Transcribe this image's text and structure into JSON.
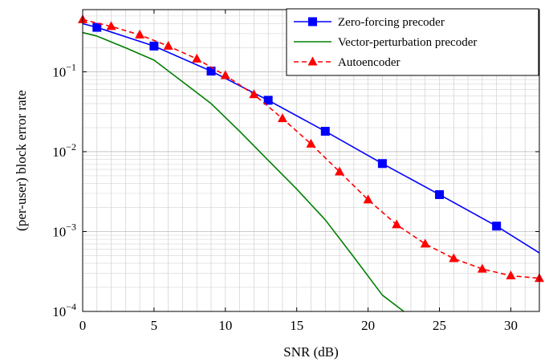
{
  "chart_data": {
    "type": "line",
    "xlabel": "SNR (dB)",
    "ylabel": "(per-user) block error rate",
    "xlim": [
      0,
      32
    ],
    "ylim": [
      0.0001,
      0.6
    ],
    "yscale": "log",
    "grid": true,
    "legend_position": "top-right",
    "x_ticks": [
      0,
      5,
      10,
      15,
      20,
      25,
      30
    ],
    "y_ticks": [
      {
        "value": 0.0001,
        "base": "10",
        "exp": "−4"
      },
      {
        "value": 0.001,
        "base": "10",
        "exp": "−3"
      },
      {
        "value": 0.01,
        "base": "10",
        "exp": "−2"
      },
      {
        "value": 0.1,
        "base": "10",
        "exp": "−1"
      }
    ],
    "series": [
      {
        "name": "Zero-forcing precoder",
        "color": "#0000ff",
        "dash": "",
        "marker": "square",
        "marker_x": [
          1,
          5,
          9,
          13,
          17,
          21,
          25,
          29
        ],
        "x": [
          0,
          1,
          5,
          9,
          13,
          17,
          21,
          25,
          29,
          32
        ],
        "y": [
          0.4,
          0.36,
          0.21,
          0.102,
          0.044,
          0.018,
          0.0071,
          0.0029,
          0.00117,
          0.00054
        ]
      },
      {
        "name": "Vector-perturbation precoder",
        "color": "#008000",
        "dash": "",
        "marker": "none",
        "marker_x": [],
        "x": [
          0,
          1,
          3,
          5,
          7,
          9,
          11,
          13,
          15,
          17,
          19,
          21,
          22.5
        ],
        "y": [
          0.31,
          0.28,
          0.2,
          0.14,
          0.075,
          0.04,
          0.018,
          0.0078,
          0.0034,
          0.0014,
          0.00048,
          0.00016,
          0.0001
        ]
      },
      {
        "name": "Autoencoder",
        "color": "#ff0000",
        "dash": "6,4",
        "marker": "triangle",
        "marker_x": [
          0,
          2,
          4,
          6,
          8,
          10,
          12,
          14,
          16,
          18,
          20,
          22,
          24,
          26,
          28,
          30,
          32
        ],
        "x": [
          0,
          2,
          4,
          6,
          8,
          10,
          12,
          14,
          16,
          18,
          20,
          22,
          24,
          26,
          28,
          30,
          32
        ],
        "y": [
          0.45,
          0.37,
          0.29,
          0.21,
          0.145,
          0.09,
          0.052,
          0.026,
          0.0125,
          0.0056,
          0.0025,
          0.00122,
          0.0007,
          0.00046,
          0.00034,
          0.00028,
          0.00026
        ]
      }
    ]
  }
}
